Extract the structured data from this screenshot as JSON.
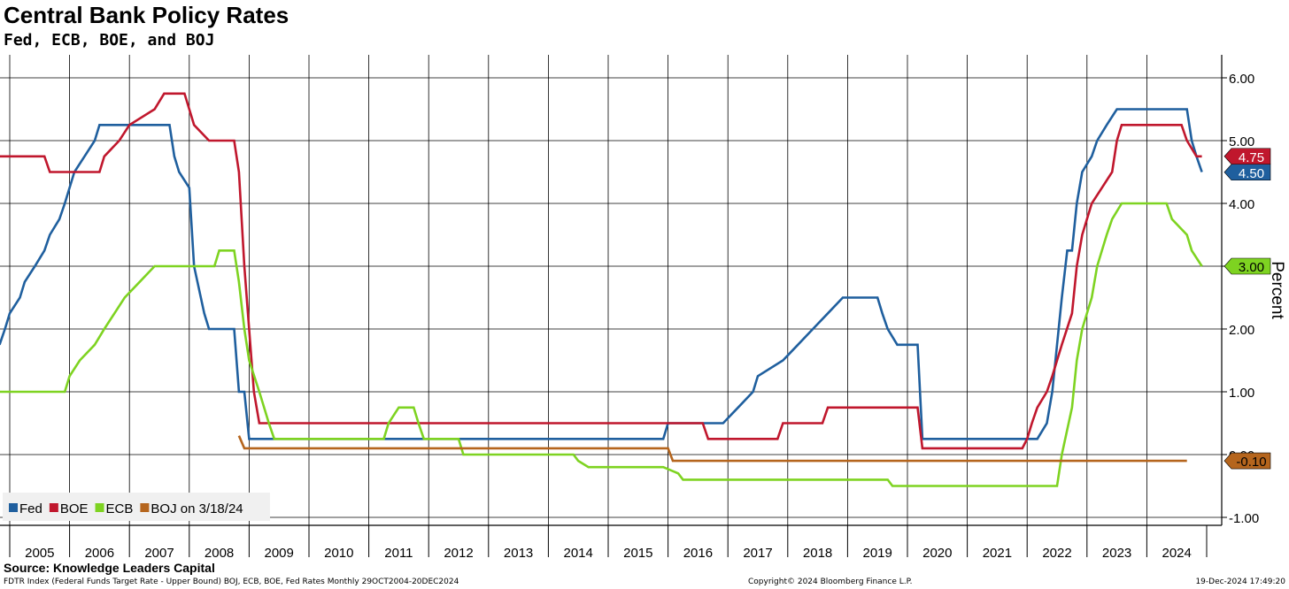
{
  "chart_data": {
    "type": "line",
    "title": "Central Bank Policy Rates",
    "subtitle": "Fed, ECB, BOE, and BOJ",
    "ylabel": "Percent",
    "ylim": [
      -1.0,
      6.0
    ],
    "y_ticks": [
      "6.00",
      "5.00",
      "4.00",
      "3.00",
      "2.00",
      "1.00",
      "0.00",
      "-1.00"
    ],
    "x_ticks": [
      "2005",
      "2006",
      "2007",
      "2008",
      "2009",
      "2010",
      "2011",
      "2012",
      "2013",
      "2014",
      "2015",
      "2016",
      "2017",
      "2018",
      "2019",
      "2020",
      "2021",
      "2022",
      "2023",
      "2024"
    ],
    "grid": true,
    "legend_position": "bottom-left",
    "series": [
      {
        "name": "Fed",
        "color": "#1f5f9e",
        "points": [
          [
            2004.83,
            1.75
          ],
          [
            2004.92,
            2.0
          ],
          [
            2005.0,
            2.25
          ],
          [
            2005.17,
            2.5
          ],
          [
            2005.25,
            2.75
          ],
          [
            2005.42,
            3.0
          ],
          [
            2005.58,
            3.25
          ],
          [
            2005.67,
            3.5
          ],
          [
            2005.83,
            3.75
          ],
          [
            2005.92,
            4.0
          ],
          [
            2006.08,
            4.5
          ],
          [
            2006.25,
            4.75
          ],
          [
            2006.42,
            5.0
          ],
          [
            2006.5,
            5.25
          ],
          [
            2007.67,
            5.25
          ],
          [
            2007.75,
            4.75
          ],
          [
            2007.83,
            4.5
          ],
          [
            2008.0,
            4.25
          ],
          [
            2008.08,
            3.0
          ],
          [
            2008.25,
            2.25
          ],
          [
            2008.33,
            2.0
          ],
          [
            2008.75,
            2.0
          ],
          [
            2008.83,
            1.0
          ],
          [
            2008.92,
            1.0
          ],
          [
            2009.0,
            0.25
          ],
          [
            2015.92,
            0.25
          ],
          [
            2016.0,
            0.5
          ],
          [
            2016.92,
            0.5
          ],
          [
            2017.17,
            0.75
          ],
          [
            2017.42,
            1.0
          ],
          [
            2017.5,
            1.25
          ],
          [
            2017.92,
            1.5
          ],
          [
            2018.17,
            1.75
          ],
          [
            2018.42,
            2.0
          ],
          [
            2018.67,
            2.25
          ],
          [
            2018.92,
            2.5
          ],
          [
            2019.5,
            2.5
          ],
          [
            2019.58,
            2.25
          ],
          [
            2019.67,
            2.0
          ],
          [
            2019.83,
            1.75
          ],
          [
            2020.17,
            1.75
          ],
          [
            2020.25,
            0.25
          ],
          [
            2022.17,
            0.25
          ],
          [
            2022.33,
            0.5
          ],
          [
            2022.42,
            1.0
          ],
          [
            2022.5,
            1.75
          ],
          [
            2022.58,
            2.5
          ],
          [
            2022.67,
            3.25
          ],
          [
            2022.75,
            3.25
          ],
          [
            2022.83,
            4.0
          ],
          [
            2022.92,
            4.5
          ],
          [
            2023.08,
            4.75
          ],
          [
            2023.17,
            5.0
          ],
          [
            2023.33,
            5.25
          ],
          [
            2023.5,
            5.5
          ],
          [
            2024.67,
            5.5
          ],
          [
            2024.75,
            5.0
          ],
          [
            2024.83,
            4.75
          ],
          [
            2024.92,
            4.5
          ]
        ]
      },
      {
        "name": "BOE",
        "color": "#c0172d",
        "points": [
          [
            2004.83,
            4.75
          ],
          [
            2005.58,
            4.75
          ],
          [
            2005.67,
            4.5
          ],
          [
            2006.5,
            4.5
          ],
          [
            2006.58,
            4.75
          ],
          [
            2006.83,
            5.0
          ],
          [
            2007.0,
            5.25
          ],
          [
            2007.42,
            5.5
          ],
          [
            2007.58,
            5.75
          ],
          [
            2007.92,
            5.75
          ],
          [
            2008.0,
            5.5
          ],
          [
            2008.08,
            5.25
          ],
          [
            2008.33,
            5.0
          ],
          [
            2008.75,
            5.0
          ],
          [
            2008.83,
            4.5
          ],
          [
            2008.92,
            3.0
          ],
          [
            2009.0,
            2.0
          ],
          [
            2009.08,
            1.0
          ],
          [
            2009.17,
            0.5
          ],
          [
            2016.58,
            0.5
          ],
          [
            2016.67,
            0.25
          ],
          [
            2017.83,
            0.25
          ],
          [
            2017.92,
            0.5
          ],
          [
            2018.58,
            0.5
          ],
          [
            2018.67,
            0.75
          ],
          [
            2020.17,
            0.75
          ],
          [
            2020.25,
            0.1
          ],
          [
            2021.92,
            0.1
          ],
          [
            2022.0,
            0.25
          ],
          [
            2022.08,
            0.5
          ],
          [
            2022.17,
            0.75
          ],
          [
            2022.33,
            1.0
          ],
          [
            2022.42,
            1.25
          ],
          [
            2022.58,
            1.75
          ],
          [
            2022.75,
            2.25
          ],
          [
            2022.83,
            3.0
          ],
          [
            2022.92,
            3.5
          ],
          [
            2023.08,
            4.0
          ],
          [
            2023.25,
            4.25
          ],
          [
            2023.42,
            4.5
          ],
          [
            2023.5,
            5.0
          ],
          [
            2023.58,
            5.25
          ],
          [
            2024.58,
            5.25
          ],
          [
            2024.67,
            5.0
          ],
          [
            2024.83,
            4.75
          ],
          [
            2024.92,
            4.75
          ]
        ]
      },
      {
        "name": "ECB",
        "color": "#7ed321",
        "points": [
          [
            2004.83,
            1.0
          ],
          [
            2005.92,
            1.0
          ],
          [
            2006.0,
            1.25
          ],
          [
            2006.17,
            1.5
          ],
          [
            2006.42,
            1.75
          ],
          [
            2006.58,
            2.0
          ],
          [
            2006.75,
            2.25
          ],
          [
            2006.92,
            2.5
          ],
          [
            2007.17,
            2.75
          ],
          [
            2007.42,
            3.0
          ],
          [
            2008.42,
            3.0
          ],
          [
            2008.5,
            3.25
          ],
          [
            2008.75,
            3.25
          ],
          [
            2008.83,
            2.75
          ],
          [
            2008.92,
            2.0
          ],
          [
            2009.0,
            1.5
          ],
          [
            2009.17,
            1.0
          ],
          [
            2009.33,
            0.5
          ],
          [
            2009.42,
            0.25
          ],
          [
            2011.25,
            0.25
          ],
          [
            2011.33,
            0.5
          ],
          [
            2011.5,
            0.75
          ],
          [
            2011.75,
            0.75
          ],
          [
            2011.83,
            0.5
          ],
          [
            2011.92,
            0.25
          ],
          [
            2012.5,
            0.25
          ],
          [
            2012.58,
            0.0
          ],
          [
            2014.42,
            0.0
          ],
          [
            2014.5,
            -0.1
          ],
          [
            2014.67,
            -0.2
          ],
          [
            2015.92,
            -0.2
          ],
          [
            2016.17,
            -0.3
          ],
          [
            2016.25,
            -0.4
          ],
          [
            2019.67,
            -0.4
          ],
          [
            2019.75,
            -0.5
          ],
          [
            2022.5,
            -0.5
          ],
          [
            2022.58,
            0.0
          ],
          [
            2022.75,
            0.75
          ],
          [
            2022.83,
            1.5
          ],
          [
            2022.92,
            2.0
          ],
          [
            2023.08,
            2.5
          ],
          [
            2023.17,
            3.0
          ],
          [
            2023.33,
            3.5
          ],
          [
            2023.42,
            3.75
          ],
          [
            2023.58,
            4.0
          ],
          [
            2024.33,
            4.0
          ],
          [
            2024.42,
            3.75
          ],
          [
            2024.67,
            3.5
          ],
          [
            2024.75,
            3.25
          ],
          [
            2024.92,
            3.0
          ]
        ]
      },
      {
        "name": "BOJ on 3/18/24",
        "color": "#b5651d",
        "points": [
          [
            2008.83,
            0.3
          ],
          [
            2008.92,
            0.1
          ],
          [
            2016.0,
            0.1
          ],
          [
            2016.08,
            -0.1
          ],
          [
            2024.67,
            -0.1
          ]
        ]
      }
    ],
    "end_labels": [
      {
        "series": "BOE",
        "value": 4.75,
        "text": "4.75",
        "color": "#c0172d",
        "text_color": "#ffffff"
      },
      {
        "series": "Fed",
        "value": 4.5,
        "text": "4.50",
        "color": "#1f5f9e",
        "text_color": "#ffffff"
      },
      {
        "series": "ECB",
        "value": 3.0,
        "text": "3.00",
        "color": "#7ed321",
        "text_color": "#000000"
      },
      {
        "series": "BOJ on 3/18/24",
        "value": -0.1,
        "text": "-0.10",
        "color": "#b5651d",
        "text_color": "#000000"
      }
    ]
  },
  "source": "Source: Knowledge Leaders Capital",
  "footer": {
    "left": "FDTR Index (Federal Funds Target Rate - Upper Bound) BOJ, ECB, BOE, Fed Rates  Monthly 29OCT2004-20DEC2024",
    "center": "Copyright© 2024 Bloomberg Finance L.P.",
    "right": "19-Dec-2024 17:49:20"
  }
}
